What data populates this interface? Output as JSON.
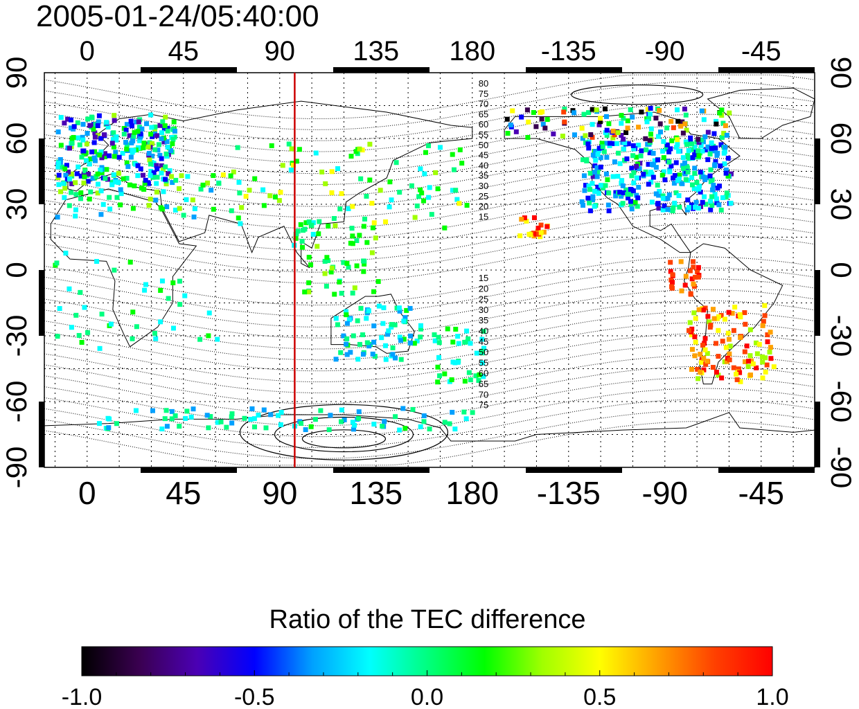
{
  "timestamp": "2005-01-24/05:40:00",
  "colorbar": {
    "title": "Ratio of the TEC difference",
    "range": [
      -1.0,
      1.0
    ],
    "tick_labels": [
      "-1.0",
      "-0.5",
      "0.0",
      "0.5",
      "1.0"
    ],
    "colormap": [
      "#000000",
      "#3a0050",
      "#4b00b4",
      "#0000ff",
      "#00a0ff",
      "#00ffff",
      "#00ff80",
      "#00ff00",
      "#a0ff00",
      "#ffff00",
      "#ffa000",
      "#ff4000",
      "#ff0000"
    ]
  },
  "map": {
    "longitude_ticks_top": [
      "0",
      "45",
      "90",
      "135",
      "180",
      "-135",
      "-90",
      "-45"
    ],
    "longitude_ticks_bottom": [
      "0",
      "45",
      "90",
      "135",
      "180",
      "-135",
      "-90",
      "-45"
    ],
    "latitude_ticks_left": [
      "90",
      "60",
      "30",
      "0",
      "-30",
      "-60",
      "-90"
    ],
    "latitude_ticks_right": [
      "90",
      "60",
      "30",
      "0",
      "-30",
      "-60",
      "-90"
    ],
    "lon_range": [
      -20,
      340
    ],
    "lat_range": [
      -90,
      90
    ],
    "grid": true,
    "midnight_meridian_longitude": 97,
    "midnight_meridian_color": "#cc0000",
    "contour_labels_north": [
      "80",
      "75",
      "70",
      "65",
      "60",
      "55",
      "50",
      "45",
      "40",
      "35",
      "30",
      "25",
      "20",
      "15"
    ],
    "contour_labels_south": [
      "15",
      "20",
      "25",
      "30",
      "35",
      "40",
      "45",
      "50",
      "55",
      "60",
      "65",
      "70",
      "75"
    ]
  }
}
